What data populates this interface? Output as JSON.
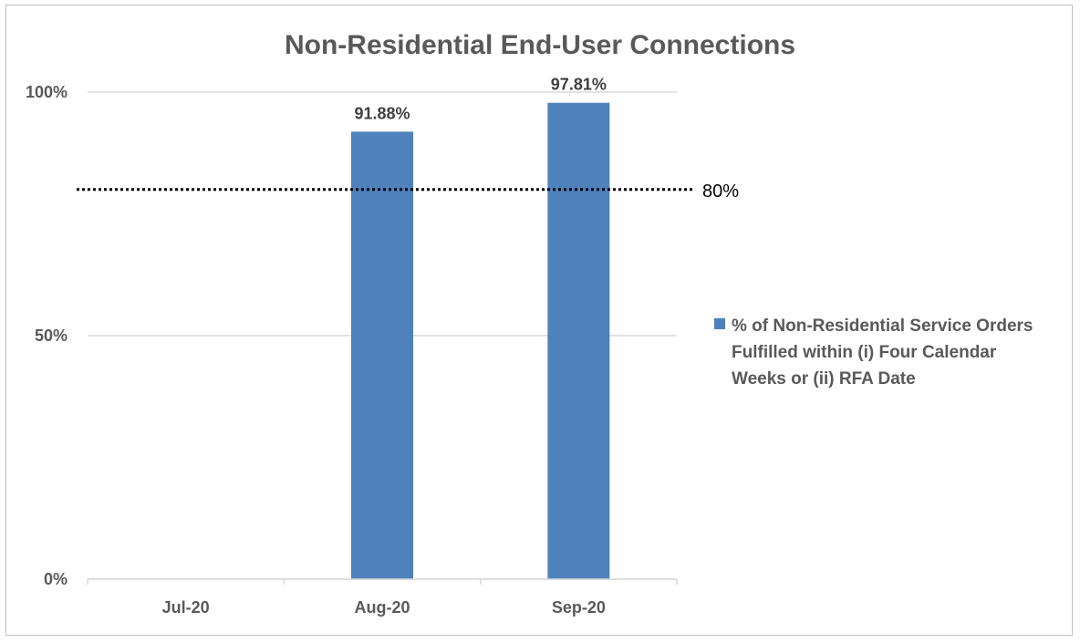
{
  "chart_data": {
    "type": "bar",
    "title": "Non-Residential End-User Connections",
    "categories": [
      "Jul-20",
      "Aug-20",
      "Sep-20"
    ],
    "series": [
      {
        "name": "% of Non-Residential Service Orders Fulfilled within (i) Four Calendar Weeks or (ii) RFA Date",
        "values": [
          null,
          91.88,
          97.81
        ],
        "data_labels": [
          "",
          "91.88%",
          "97.81%"
        ],
        "color": "#4f81bd"
      }
    ],
    "y_ticks": [
      0,
      50,
      100
    ],
    "y_tick_labels": [
      "0%",
      "50%",
      "100%"
    ],
    "ylim": [
      0,
      100
    ],
    "reference_line": {
      "value": 80,
      "label": "80%",
      "style": "dotted",
      "color": "#000000"
    },
    "legend_lines": [
      "% of Non-Residential Service Orders",
      "Fulfilled within (i) Four Calendar",
      "Weeks or (ii) RFA Date"
    ],
    "legend_position": "right",
    "grid": true,
    "gridline_color": "#d9d9d9",
    "xlabel": "",
    "ylabel": ""
  }
}
